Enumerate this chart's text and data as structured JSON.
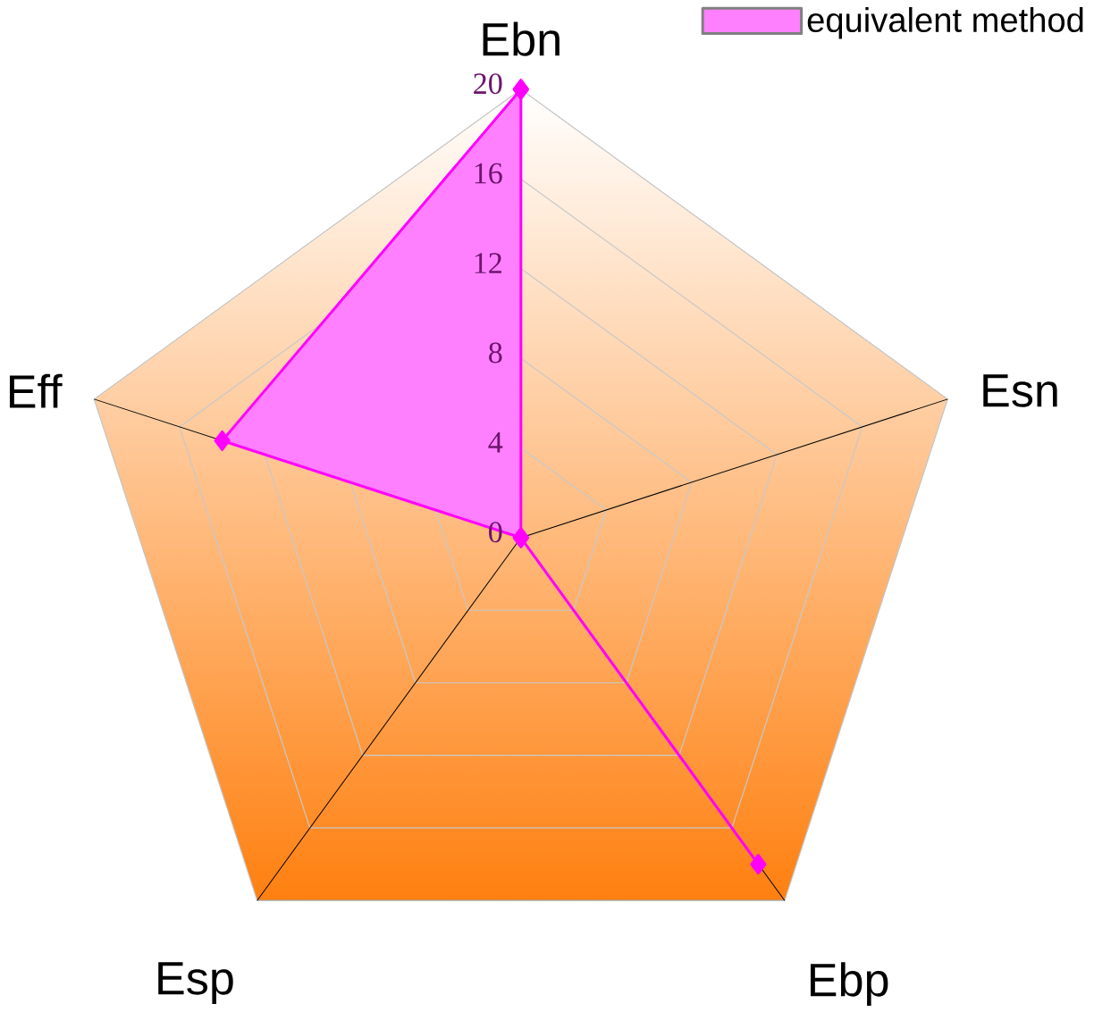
{
  "chart_data": {
    "type": "radar",
    "categories": [
      "Ebn",
      "Esn",
      "Ebp",
      "Esp",
      "Eff"
    ],
    "series": [
      {
        "name": "equivalent method",
        "color": "#ff00ff",
        "values": [
          20,
          0,
          18,
          0,
          14
        ]
      }
    ],
    "ylim": [
      0,
      20
    ],
    "yticks": [
      0,
      4,
      8,
      12,
      16,
      20
    ],
    "grid": true,
    "legend": "top right",
    "marker": "diamond"
  }
}
